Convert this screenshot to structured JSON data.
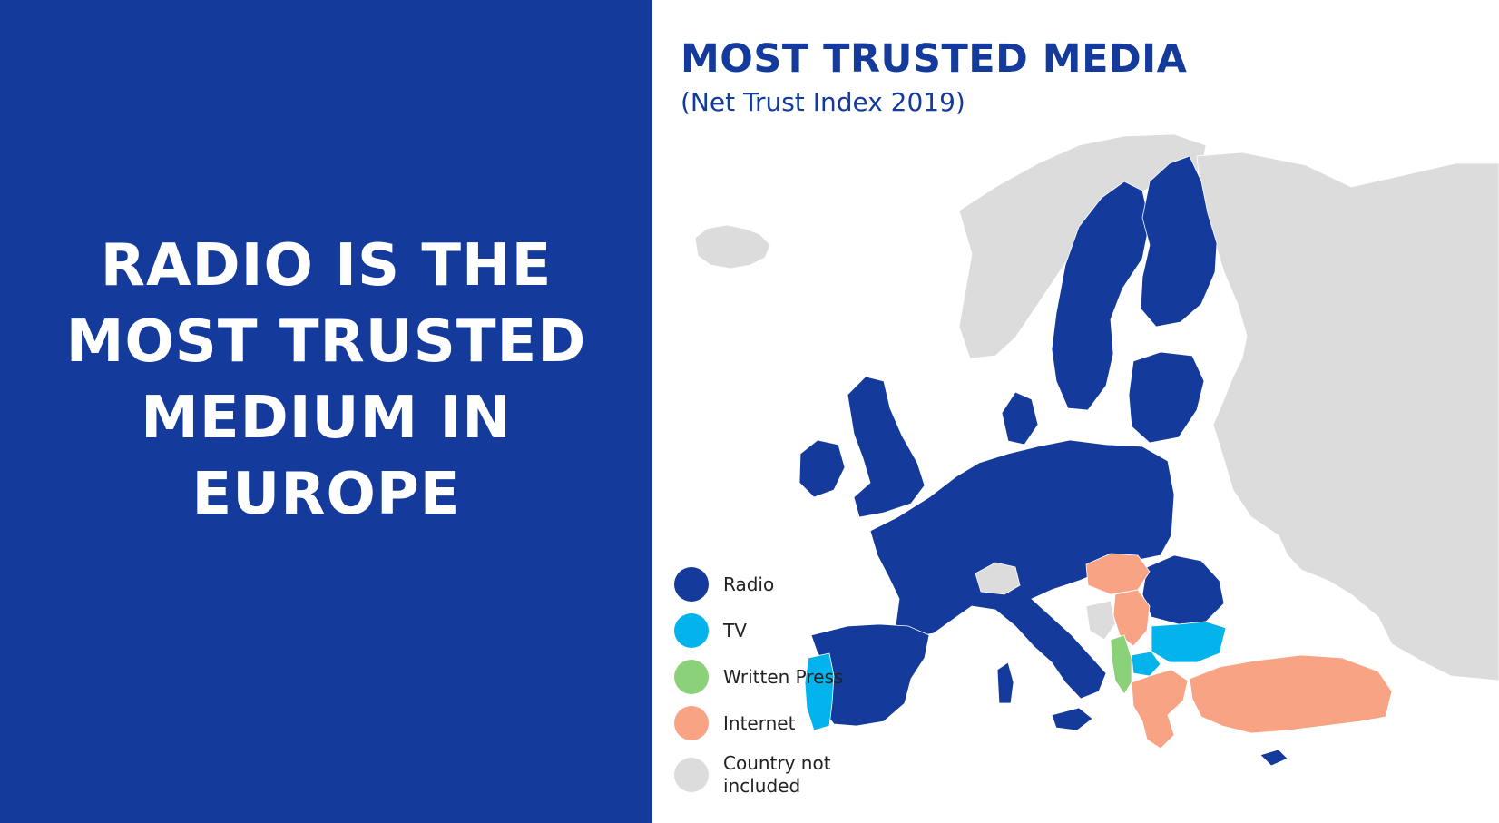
{
  "headline": {
    "lines": [
      "RADIO IS THE",
      "MOST TRUSTED",
      "MEDIUM IN",
      "EUROPE"
    ]
  },
  "map": {
    "title": "MOST TRUSTED MEDIA",
    "subtitle": "(Net Trust Index 2019)",
    "colors": {
      "radio": "#143b9b",
      "tv": "#03b3ec",
      "written_press": "#8ad179",
      "internet": "#f9a385",
      "not_included": "#dcdcdc"
    },
    "legend": [
      {
        "label": "Radio",
        "color": "#143b9b"
      },
      {
        "label": "TV",
        "color": "#03b3ec"
      },
      {
        "label": "Written Press",
        "color": "#8ad179"
      },
      {
        "label": "Internet",
        "color": "#f9a385"
      },
      {
        "label": "Country not included",
        "color": "#dcdcdc"
      }
    ]
  }
}
